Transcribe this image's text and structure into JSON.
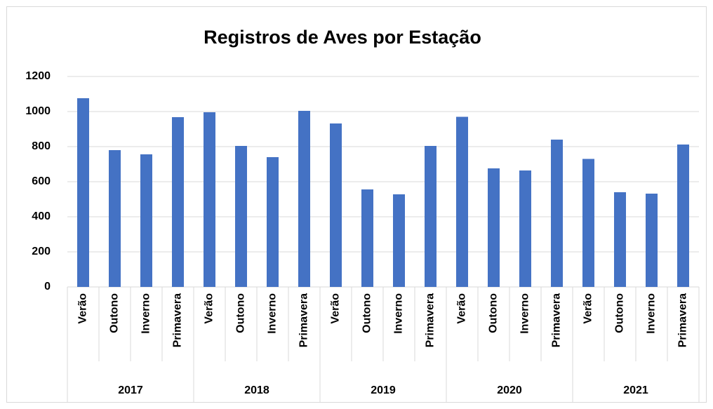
{
  "chart_data": {
    "type": "bar",
    "title": "Registros de Aves por Estação",
    "categories": [
      "Verão",
      "Outono",
      "Inverno",
      "Primavera",
      "Verão",
      "Outono",
      "Inverno",
      "Primavera",
      "Verão",
      "Outono",
      "Inverno",
      "Primavera",
      "Verão",
      "Outono",
      "Inverno",
      "Primavera",
      "Verão",
      "Outono",
      "Inverno",
      "Primavera"
    ],
    "groups": [
      "2017",
      "2018",
      "2019",
      "2020",
      "2021"
    ],
    "values": [
      1076,
      780,
      756,
      968,
      996,
      804,
      740,
      1004,
      932,
      556,
      528,
      804,
      970,
      676,
      664,
      840,
      730,
      540,
      532,
      812
    ],
    "color": "#4472c4",
    "ylim": [
      0,
      1200
    ],
    "yticks": [
      0,
      200,
      400,
      600,
      800,
      1000,
      1200
    ],
    "grid": true
  }
}
